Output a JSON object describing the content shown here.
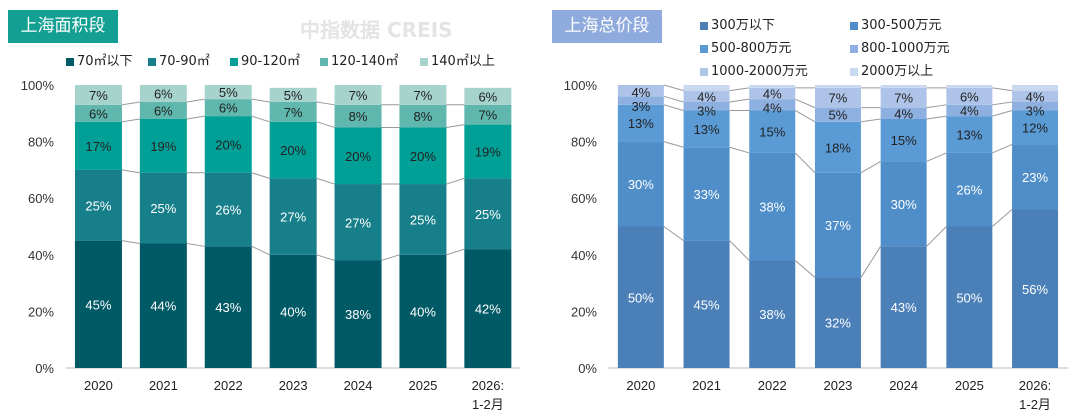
{
  "watermark": "中指数据 CREIS",
  "chart_data": [
    {
      "type": "bar",
      "stacked": true,
      "title": "上海面积段",
      "ylim": [
        0,
        100
      ],
      "yticks": [
        "0%",
        "20%",
        "40%",
        "60%",
        "80%",
        "100%"
      ],
      "categories": [
        "2020",
        "2021",
        "2022",
        "2023",
        "2024",
        "2025",
        "2026: 1-2月"
      ],
      "series": [
        {
          "name": "70㎡以下",
          "color": "#005a66",
          "values": [
            45,
            44,
            43,
            40,
            38,
            40,
            42
          ]
        },
        {
          "name": "70-90㎡",
          "color": "#167f89",
          "values": [
            25,
            25,
            26,
            27,
            27,
            25,
            25
          ]
        },
        {
          "name": "90-120㎡",
          "color": "#00a097",
          "values": [
            17,
            19,
            20,
            20,
            20,
            20,
            19
          ]
        },
        {
          "name": "120-140㎡",
          "color": "#5fb7ad",
          "values": [
            6,
            6,
            6,
            7,
            8,
            8,
            7
          ]
        },
        {
          "name": "140㎡以上",
          "color": "#a6d3cc",
          "values": [
            7,
            6,
            5,
            5,
            7,
            7,
            6
          ]
        }
      ]
    },
    {
      "type": "bar",
      "stacked": true,
      "title": "上海总价段",
      "ylim": [
        0,
        100
      ],
      "yticks": [
        "0%",
        "20%",
        "40%",
        "60%",
        "80%",
        "100%"
      ],
      "categories": [
        "2020",
        "2021",
        "2022",
        "2023",
        "2024",
        "2025",
        "2026: 1-2月"
      ],
      "series": [
        {
          "name": "300万以下",
          "color": "#4a7fb8",
          "values": [
            50,
            45,
            38,
            32,
            43,
            50,
            56
          ]
        },
        {
          "name": "300-500万元",
          "color": "#4f8ec9",
          "values": [
            30,
            33,
            38,
            37,
            30,
            26,
            23
          ]
        },
        {
          "name": "500-800万元",
          "color": "#5b9bd5",
          "values": [
            13,
            13,
            15,
            18,
            15,
            13,
            12
          ]
        },
        {
          "name": "800-1000万元",
          "color": "#8eb0e0",
          "values": [
            3,
            3,
            4,
            5,
            4,
            4,
            3
          ]
        },
        {
          "name": "1000-2000万元",
          "color": "#adc4e8",
          "values": [
            4,
            4,
            4,
            7,
            7,
            6,
            4
          ]
        },
        {
          "name": "2000万以上",
          "color": "#c9d7ef",
          "values": [
            null,
            null,
            null,
            null,
            null,
            null,
            null
          ]
        }
      ]
    }
  ]
}
